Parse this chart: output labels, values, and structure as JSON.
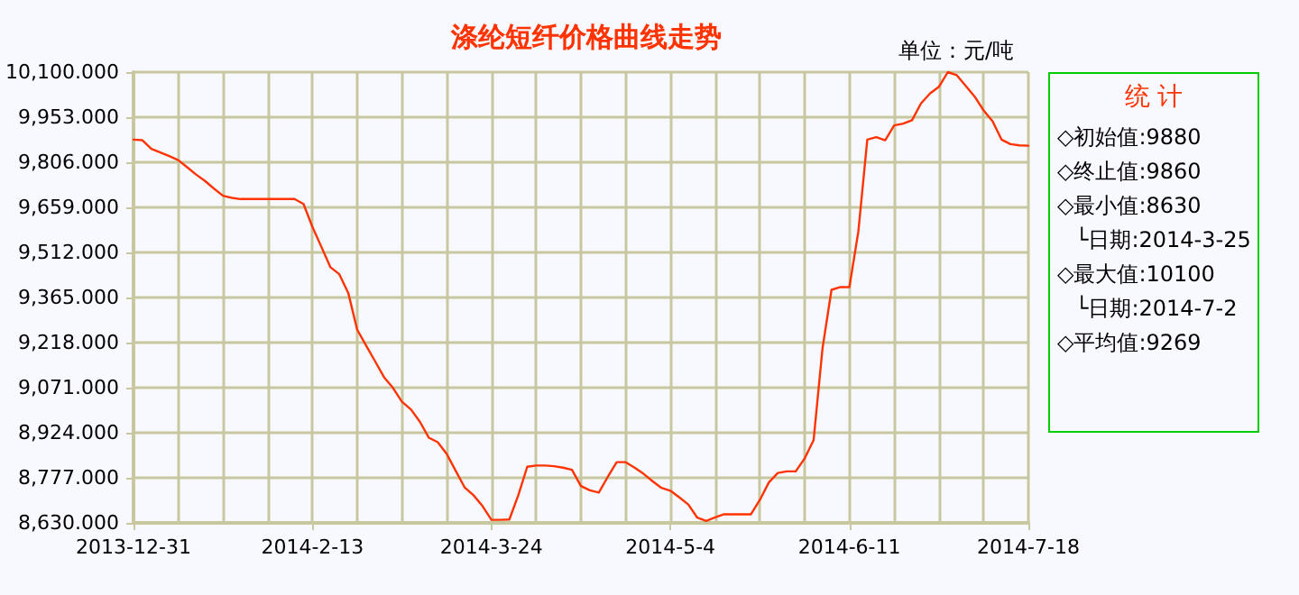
{
  "chart_data": {
    "type": "line",
    "title": "涤纶短纤价格曲线走势",
    "categories": [
      "2013-12-31",
      null,
      null,
      null,
      null,
      null,
      null,
      null,
      null,
      null,
      null,
      null,
      null,
      null,
      null,
      null,
      null,
      null,
      null,
      null,
      "2014-2-13",
      null,
      null,
      null,
      null,
      null,
      null,
      null,
      null,
      null,
      null,
      null,
      null,
      null,
      null,
      null,
      null,
      null,
      null,
      null,
      "2014-3-24",
      null,
      null,
      null,
      null,
      null,
      null,
      null,
      null,
      null,
      null,
      null,
      null,
      null,
      null,
      null,
      null,
      null,
      null,
      null,
      "2014-5-4",
      null,
      null,
      null,
      null,
      null,
      null,
      null,
      null,
      null,
      null,
      null,
      null,
      null,
      null,
      null,
      null,
      null,
      null,
      null,
      "2014-6-11",
      null,
      null,
      null,
      null,
      null,
      null,
      null,
      null,
      null,
      null,
      null,
      null,
      null,
      null,
      null,
      null,
      null,
      null,
      null,
      "2014-7-18"
    ],
    "series": [
      {
        "color": "#ff3300",
        "values": [
          9880,
          9878,
          9850,
          9838,
          9826,
          9813,
          9790,
          9766,
          9745,
          9720,
          9697,
          9690,
          9686,
          9686,
          9686,
          9686,
          9686,
          9686,
          9686,
          9670,
          9595,
          9530,
          9464,
          9441,
          9380,
          9260,
          9208,
          9157,
          9105,
          9070,
          9025,
          9000,
          8960,
          8908,
          8893,
          8855,
          8800,
          8746,
          8720,
          8685,
          8640,
          8640,
          8641,
          8720,
          8813,
          8817,
          8817,
          8815,
          8810,
          8803,
          8750,
          8736,
          8729,
          8780,
          8828,
          8828,
          8810,
          8790,
          8766,
          8744,
          8735,
          8713,
          8690,
          8647,
          8636,
          8648,
          8658,
          8658,
          8658,
          8658,
          8705,
          8762,
          8793,
          8798,
          8798,
          8840,
          8900,
          9200,
          9390,
          9399,
          9399,
          9580,
          9880,
          9888,
          9878,
          9926,
          9932,
          9943,
          9998,
          10030,
          10052,
          10100,
          10090,
          10055,
          10020,
          9975,
          9940,
          9880,
          9865,
          9861,
          9860
        ]
      }
    ],
    "ylim": [
      8630,
      10100
    ],
    "yticks": [
      {
        "value": 8630,
        "label": "8,630.000"
      },
      {
        "value": 8777,
        "label": "8,777.000"
      },
      {
        "value": 8924,
        "label": "8,924.000"
      },
      {
        "value": 9071,
        "label": "9,071.000"
      },
      {
        "value": 9218,
        "label": "9,218.000"
      },
      {
        "value": 9365,
        "label": "9,365.000"
      },
      {
        "value": 9512,
        "label": "9,512.000"
      },
      {
        "value": 9659,
        "label": "9,659.000"
      },
      {
        "value": 9806,
        "label": "9,806.000"
      },
      {
        "value": 9953,
        "label": "9,953.000"
      },
      {
        "value": 10100,
        "label": "10,100.000"
      }
    ],
    "grid": true,
    "marker": "none",
    "line_style": "solid",
    "annotations": [
      "单位：元/吨",
      "统 计",
      "◇初始值:9880",
      "◇终止值:9860",
      "◇最小值:8630",
      "└日期:2014-3-25",
      "◇最大值:10100",
      "└日期:2014-7-2",
      "◇平均值:9269"
    ]
  }
}
